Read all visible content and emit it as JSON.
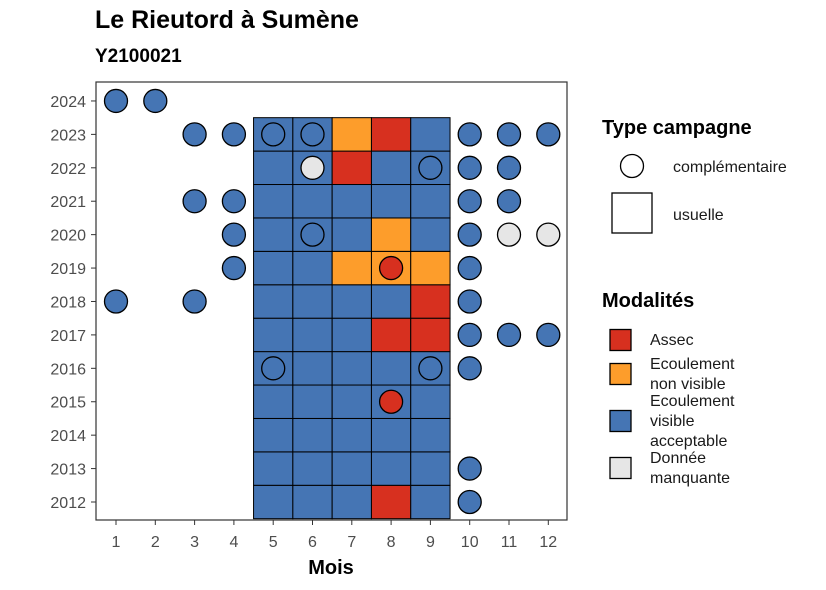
{
  "title": "Le Rieutord à Sumène",
  "subtitle": "Y2100021",
  "chart_data": {
    "type": "heatmap",
    "xlabel": "Mois",
    "x_ticks": [
      "1",
      "2",
      "3",
      "4",
      "5",
      "6",
      "7",
      "8",
      "9",
      "10",
      "11",
      "12"
    ],
    "y_ticks": [
      "2012",
      "2013",
      "2014",
      "2015",
      "2016",
      "2017",
      "2018",
      "2019",
      "2020",
      "2021",
      "2022",
      "2023",
      "2024"
    ],
    "legend_type": {
      "title": "Type campagne",
      "items": [
        {
          "key": "complementaire",
          "label": "complémentaire"
        },
        {
          "key": "usuelle",
          "label": "usuelle"
        }
      ]
    },
    "legend_modalites": {
      "title": "Modalités",
      "items": [
        {
          "key": "A",
          "lines": [
            "Assec"
          ],
          "color": "#d7301f"
        },
        {
          "key": "N",
          "lines": [
            "Ecoulement",
            "non visible"
          ],
          "color": "#fd9d2b"
        },
        {
          "key": "V",
          "lines": [
            "Ecoulement",
            "visible",
            "acceptable"
          ],
          "color": "#4575b4"
        },
        {
          "key": "M",
          "lines": [
            "Donnée",
            "manquante"
          ],
          "color": "#e6e6e6"
        }
      ]
    },
    "usuelle": [
      {
        "year": "2012",
        "months": "VVVAV"
      },
      {
        "year": "2013",
        "months": "VVVVV"
      },
      {
        "year": "2014",
        "months": "VVVVV"
      },
      {
        "year": "2015",
        "months": "VVVVV"
      },
      {
        "year": "2016",
        "months": "VVVVV"
      },
      {
        "year": "2017",
        "months": "VVVAA"
      },
      {
        "year": "2018",
        "months": "VVVVA"
      },
      {
        "year": "2019",
        "months": "VVNNN"
      },
      {
        "year": "2020",
        "months": "VVVNV"
      },
      {
        "year": "2021",
        "months": "VVVVV"
      },
      {
        "year": "2022",
        "months": "VVAVV"
      },
      {
        "year": "2023",
        "months": "VVNAV"
      }
    ],
    "usuelle_first_month": 5,
    "complementaire": [
      {
        "year": "2012",
        "month": 10,
        "value": "V"
      },
      {
        "year": "2013",
        "month": 10,
        "value": "V"
      },
      {
        "year": "2015",
        "month": 8,
        "value": "A"
      },
      {
        "year": "2016",
        "month": 5,
        "value": "V"
      },
      {
        "year": "2016",
        "month": 9,
        "value": "V"
      },
      {
        "year": "2016",
        "month": 10,
        "value": "V"
      },
      {
        "year": "2017",
        "month": 10,
        "value": "V"
      },
      {
        "year": "2017",
        "month": 11,
        "value": "V"
      },
      {
        "year": "2017",
        "month": 12,
        "value": "V"
      },
      {
        "year": "2018",
        "month": 1,
        "value": "V"
      },
      {
        "year": "2018",
        "month": 3,
        "value": "V"
      },
      {
        "year": "2018",
        "month": 10,
        "value": "V"
      },
      {
        "year": "2019",
        "month": 4,
        "value": "V"
      },
      {
        "year": "2019",
        "month": 8,
        "value": "A"
      },
      {
        "year": "2019",
        "month": 10,
        "value": "V"
      },
      {
        "year": "2020",
        "month": 4,
        "value": "V"
      },
      {
        "year": "2020",
        "month": 6,
        "value": "V"
      },
      {
        "year": "2020",
        "month": 10,
        "value": "V"
      },
      {
        "year": "2020",
        "month": 11,
        "value": "M"
      },
      {
        "year": "2020",
        "month": 12,
        "value": "M"
      },
      {
        "year": "2021",
        "month": 3,
        "value": "V"
      },
      {
        "year": "2021",
        "month": 4,
        "value": "V"
      },
      {
        "year": "2021",
        "month": 10,
        "value": "V"
      },
      {
        "year": "2021",
        "month": 11,
        "value": "V"
      },
      {
        "year": "2022",
        "month": 6,
        "value": "M"
      },
      {
        "year": "2022",
        "month": 9,
        "value": "V"
      },
      {
        "year": "2022",
        "month": 10,
        "value": "V"
      },
      {
        "year": "2022",
        "month": 11,
        "value": "V"
      },
      {
        "year": "2023",
        "month": 3,
        "value": "V"
      },
      {
        "year": "2023",
        "month": 4,
        "value": "V"
      },
      {
        "year": "2023",
        "month": 5,
        "value": "V"
      },
      {
        "year": "2023",
        "month": 6,
        "value": "V"
      },
      {
        "year": "2023",
        "month": 10,
        "value": "V"
      },
      {
        "year": "2023",
        "month": 11,
        "value": "V"
      },
      {
        "year": "2023",
        "month": 12,
        "value": "V"
      },
      {
        "year": "2024",
        "month": 1,
        "value": "V"
      },
      {
        "year": "2024",
        "month": 2,
        "value": "V"
      }
    ]
  }
}
